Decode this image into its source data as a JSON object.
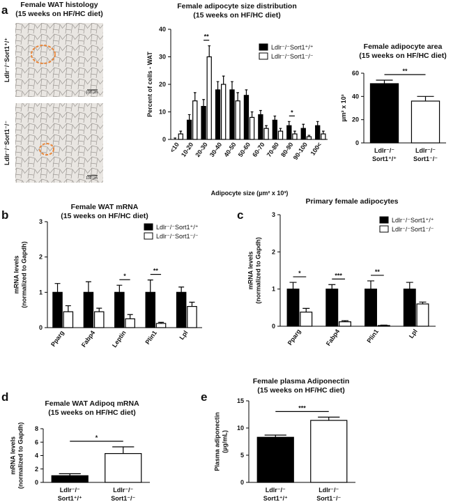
{
  "panels": [
    "a",
    "b",
    "c",
    "d",
    "e"
  ],
  "histology": {
    "title": [
      "Female WAT histology",
      "(15 weeks on HF/HC diet)"
    ],
    "images": [
      {
        "label": "Ldlr⁻/⁻Sort1⁺/⁺",
        "scale": "100 µm"
      },
      {
        "label": "Ldlr⁻/⁻Sort1⁻/⁻",
        "scale": "100 µm"
      }
    ]
  },
  "chart_data": [
    {
      "type": "bar",
      "title": [
        "Female adipocyte size distribution",
        "(15 weeks on HF/HC diet)"
      ],
      "ylabel": [
        "Percent of cells - WAT"
      ],
      "xlabel": "Adipocyte size (µm² x 10³)",
      "categories": [
        "<10",
        "10-20",
        "20-30",
        "30-40",
        "40-50",
        "50-60",
        "60-70",
        "70-80",
        "80-90",
        "90-100",
        "100<"
      ],
      "series": [
        {
          "name": "Ldlr⁻/⁻Sort1⁺/⁺",
          "color": "#000000",
          "values": [
            0,
            7,
            12,
            18,
            18,
            16,
            9,
            7,
            5,
            4,
            5
          ],
          "errors": [
            0.5,
            2,
            2.5,
            3,
            3,
            2,
            1.5,
            1.5,
            1.5,
            1.5,
            1.5
          ]
        },
        {
          "name": "Ldlr⁻/⁻Sort1⁻/⁻",
          "color": "#ffffff",
          "values": [
            2,
            14,
            30,
            20,
            14,
            8,
            4,
            3,
            2,
            1,
            2
          ],
          "errors": [
            1,
            3,
            4,
            3,
            3,
            2,
            1,
            1,
            1,
            0.5,
            1
          ]
        }
      ],
      "annotations": [
        null,
        null,
        "**",
        null,
        null,
        null,
        null,
        null,
        "*",
        null,
        null
      ],
      "ylim": [
        0,
        40
      ],
      "yticks": [
        0,
        10,
        20,
        30,
        40
      ]
    },
    {
      "type": "bar",
      "title": [
        "Female adipocyte area",
        "(15 weeks on HF/HC diet)"
      ],
      "ylabel": [
        "µm² x 10³"
      ],
      "categories": [
        [
          "Ldlr⁻/⁻",
          "Sort1⁺/⁺"
        ],
        [
          "Ldlr⁻/⁻",
          "Sort1⁻/⁻"
        ]
      ],
      "values": [
        51,
        36
      ],
      "errors": [
        3,
        4
      ],
      "colors": [
        "#000000",
        "#ffffff"
      ],
      "annotation": "**",
      "ylim": [
        0,
        60
      ],
      "yticks": [
        0,
        20,
        40,
        60
      ]
    },
    {
      "type": "bar",
      "title": [
        "Female WAT mRNA",
        "(15 weeks on HF/HC diet)"
      ],
      "ylabel": [
        "mRNA levels",
        "(normalized to Gapdh)"
      ],
      "categories": [
        "Pparg",
        "Fabp4",
        "Leptin",
        "Plin1",
        "Lpl"
      ],
      "series": [
        {
          "name": "Ldlr⁻/⁻Sort1⁺/⁺",
          "color": "#000000",
          "values": [
            1,
            1,
            1,
            1,
            1
          ],
          "errors": [
            0.25,
            0.3,
            0.2,
            0.35,
            0.15
          ]
        },
        {
          "name": "Ldlr⁻/⁻Sort1⁻/⁻",
          "color": "#ffffff",
          "values": [
            0.45,
            0.45,
            0.25,
            0.12,
            0.6
          ],
          "errors": [
            0.17,
            0.1,
            0.12,
            0.03,
            0.12
          ]
        }
      ],
      "annotations": [
        null,
        null,
        "*",
        "**",
        null
      ],
      "ylim": [
        0,
        3
      ],
      "yticks": [
        0,
        1,
        2,
        3
      ]
    },
    {
      "type": "bar",
      "title": [
        "Primary female adipocytes"
      ],
      "ylabel": [
        "mRNA levels",
        "(normalized to Gapdh)"
      ],
      "categories": [
        "Pparg",
        "Fabp4",
        "Plin1",
        "Lpl"
      ],
      "series": [
        {
          "name": "Ldlr⁻/⁻Sort1⁺/⁺",
          "color": "#000000",
          "values": [
            1,
            1,
            1,
            1
          ],
          "errors": [
            0.18,
            0.12,
            0.22,
            0.18
          ]
        },
        {
          "name": "Ldlr⁻/⁻Sort1⁻/⁻",
          "color": "#ffffff",
          "values": [
            0.38,
            0.12,
            0.02,
            0.6
          ],
          "errors": [
            0.1,
            0.03,
            0.01,
            0.05
          ]
        }
      ],
      "annotations": [
        "*",
        "***",
        "**",
        null
      ],
      "ylim": [
        0,
        3
      ],
      "yticks": [
        0,
        1,
        2,
        3
      ]
    },
    {
      "type": "bar",
      "title": [
        "Female WAT Adipoq mRNA",
        "(15 weeks on HF/HC diet)"
      ],
      "ylabel": [
        "mRNA levels",
        "(normalized to Gapdh)"
      ],
      "categories": [
        [
          "Ldlr⁻/⁻",
          "Sort1⁺/⁺"
        ],
        [
          "Ldlr⁻/⁻",
          "Sort1⁻/⁻"
        ]
      ],
      "values": [
        1.0,
        4.3
      ],
      "errors": [
        0.3,
        1.0
      ],
      "colors": [
        "#000000",
        "#ffffff"
      ],
      "annotation": "*",
      "ylim": [
        0,
        8
      ],
      "yticks": [
        0,
        2,
        4,
        6,
        8
      ]
    },
    {
      "type": "bar",
      "title": [
        "Female plasma Adiponectin",
        "(15 weeks on HF/HC diet)"
      ],
      "ylabel": [
        "Plasma adiponectin",
        "(µg/mL)"
      ],
      "categories": [
        [
          "Ldlr⁻/⁻",
          "Sort1⁺/⁺"
        ],
        [
          "Ldlr⁻/⁻",
          "Sort1⁻/⁻"
        ]
      ],
      "values": [
        8.3,
        11.4
      ],
      "errors": [
        0.4,
        0.6
      ],
      "colors": [
        "#000000",
        "#ffffff"
      ],
      "annotation": "***",
      "ylim": [
        0,
        15
      ],
      "yticks": [
        0,
        5,
        10,
        15
      ]
    }
  ]
}
